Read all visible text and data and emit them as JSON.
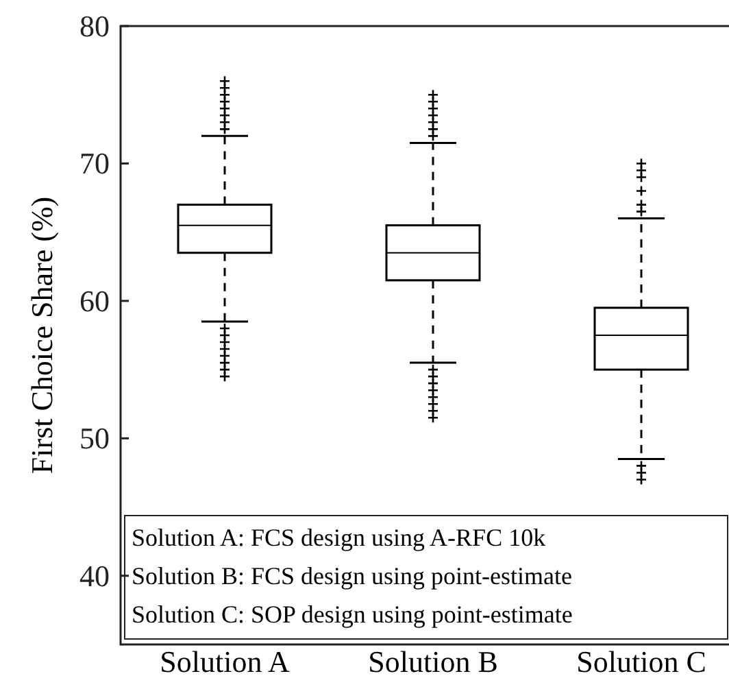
{
  "chart_data": {
    "type": "box",
    "ylabel": "First Choice Share (%)",
    "categories": [
      "Solution A",
      "Solution B",
      "Solution C"
    ],
    "boxes": [
      {
        "low": 58.5,
        "q1": 63.5,
        "median": 65.5,
        "q3": 67,
        "high": 72,
        "outliers": [
          76,
          75.5,
          75,
          74.5,
          74,
          73.5,
          73,
          72.5,
          58,
          57.5,
          57,
          56.5,
          56,
          55.5,
          55,
          54.5
        ]
      },
      {
        "low": 55.5,
        "q1": 61.5,
        "median": 63.5,
        "q3": 65.5,
        "high": 71.5,
        "outliers": [
          75,
          74.5,
          74,
          73.5,
          73,
          72.5,
          72,
          55,
          54.5,
          54,
          53.5,
          53,
          52.5,
          52,
          51.5
        ]
      },
      {
        "low": 48.5,
        "q1": 55,
        "median": 57.5,
        "q3": 59.5,
        "high": 66,
        "outliers": [
          70,
          69.5,
          69,
          68,
          67,
          66.5,
          48,
          47.5,
          47
        ]
      }
    ],
    "ylim": [
      35,
      80
    ],
    "yticks": [
      40,
      50,
      60,
      70,
      80
    ],
    "grid": false,
    "marker": "cross",
    "line_style": "dashed",
    "color": "#000000",
    "annotations": [
      "Solution A: FCS design using A-RFC 10k",
      "Solution B: FCS design using point-estimate",
      "Solution C: SOP design using point-estimate"
    ]
  }
}
